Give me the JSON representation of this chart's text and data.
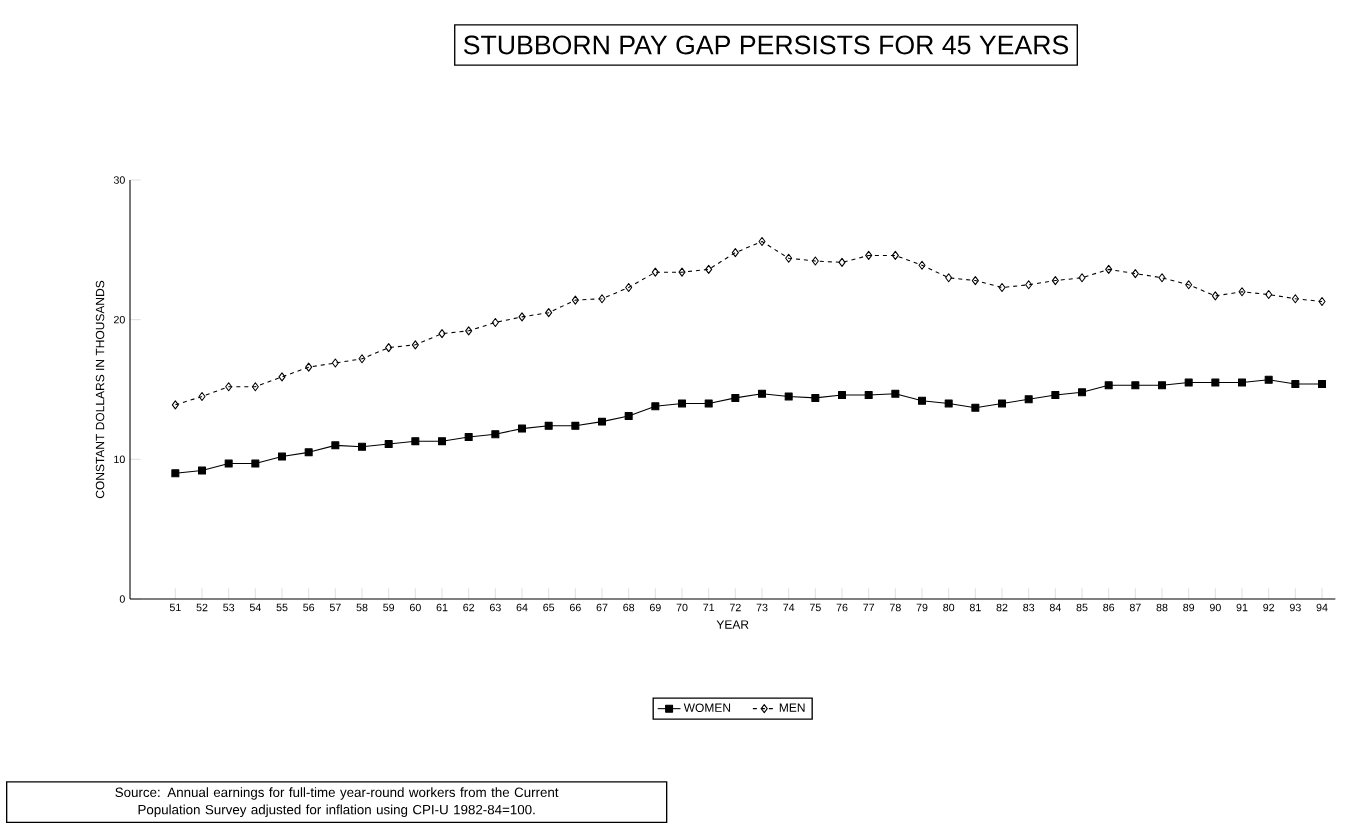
{
  "chart_data": {
    "type": "line",
    "title": "STUBBORN PAY GAP PERSISTS FOR 45 YEARS",
    "xlabel": "YEAR",
    "ylabel": "CONSTANT DOLLARS IN THOUSANDS",
    "categories": [
      "51",
      "52",
      "53",
      "54",
      "55",
      "56",
      "57",
      "58",
      "59",
      "60",
      "61",
      "62",
      "63",
      "64",
      "65",
      "66",
      "67",
      "68",
      "69",
      "70",
      "71",
      "72",
      "73",
      "74",
      "75",
      "76",
      "77",
      "78",
      "79",
      "80",
      "81",
      "82",
      "83",
      "84",
      "85",
      "86",
      "87",
      "88",
      "89",
      "90",
      "91",
      "92",
      "93",
      "94"
    ],
    "series": [
      {
        "name": "WOMEN",
        "color": "#000000",
        "marker": "square",
        "line_style": "solid",
        "values": [
          9.0,
          9.2,
          9.7,
          9.7,
          10.2,
          10.5,
          11.0,
          10.9,
          11.1,
          11.3,
          11.3,
          11.6,
          11.8,
          12.2,
          12.4,
          12.4,
          12.7,
          13.1,
          13.8,
          14.0,
          14.0,
          14.4,
          14.7,
          14.5,
          14.4,
          14.6,
          14.6,
          14.7,
          14.2,
          14.0,
          13.7,
          14.0,
          14.3,
          14.6,
          14.8,
          15.3,
          15.3,
          15.3,
          15.5,
          15.5,
          15.5,
          15.7,
          15.4,
          15.4
        ]
      },
      {
        "name": "MEN",
        "color": "#000000",
        "marker": "diamond",
        "line_style": "dashed",
        "values": [
          13.9,
          14.5,
          15.2,
          15.2,
          15.9,
          16.6,
          16.9,
          17.2,
          18.0,
          18.2,
          19.0,
          19.2,
          19.8,
          20.2,
          20.5,
          21.4,
          21.5,
          22.3,
          23.4,
          23.4,
          23.6,
          24.8,
          25.6,
          24.4,
          24.2,
          24.1,
          24.6,
          24.6,
          23.9,
          23.0,
          22.8,
          22.3,
          22.5,
          22.8,
          23.0,
          23.6,
          23.3,
          23.0,
          22.5,
          21.7,
          22.0,
          21.8,
          21.5,
          21.3
        ]
      }
    ],
    "ylim": [
      0,
      30
    ],
    "yticks": [
      0,
      10,
      20,
      30
    ],
    "grid": false,
    "legend": "bottom",
    "annotations": [
      "Source: Annual earnings for full-time year-round workers from the Current Population Survey adjusted for inflation using CPI-U 1982-84=100."
    ]
  }
}
